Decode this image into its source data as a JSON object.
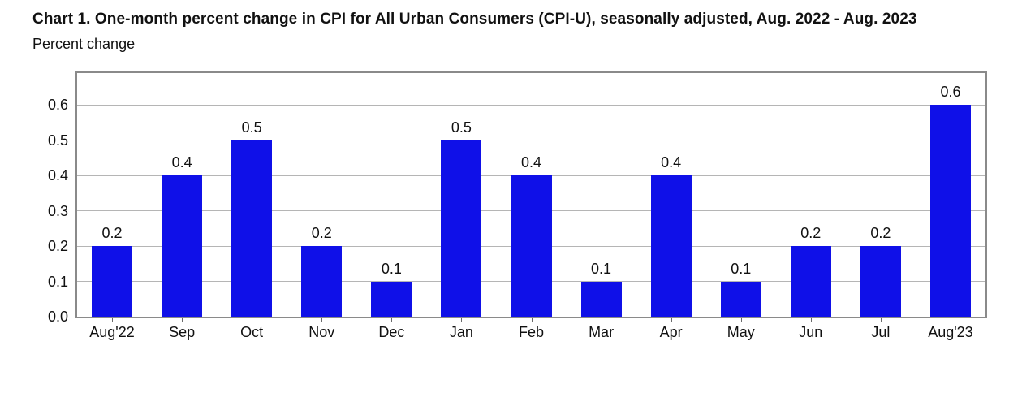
{
  "page": {
    "background": "#ffffff"
  },
  "header": {
    "title": "Chart 1. One-month percent change in CPI for All Urban Consumers (CPI-U), seasonally adjusted, Aug. 2022 - Aug. 2023",
    "subtitle": "Percent change"
  },
  "chart_data": {
    "type": "bar",
    "title": "Chart 1. One-month percent change in CPI for All Urban Consumers (CPI-U), seasonally adjusted, Aug. 2022 - Aug. 2023",
    "subtitle": "Percent change",
    "xlabel": "",
    "ylabel": "Percent change",
    "categories": [
      "Aug'22",
      "Sep",
      "Oct",
      "Nov",
      "Dec",
      "Jan",
      "Feb",
      "Mar",
      "Apr",
      "May",
      "Jun",
      "Jul",
      "Aug'23"
    ],
    "values": [
      0.2,
      0.4,
      0.5,
      0.2,
      0.1,
      0.5,
      0.4,
      0.1,
      0.4,
      0.1,
      0.2,
      0.2,
      0.6
    ],
    "value_labels": [
      "0.2",
      "0.4",
      "0.5",
      "0.2",
      "0.1",
      "0.5",
      "0.4",
      "0.1",
      "0.4",
      "0.1",
      "0.2",
      "0.2",
      "0.6"
    ],
    "yticks": [
      0.0,
      0.1,
      0.2,
      0.3,
      0.4,
      0.5,
      0.6
    ],
    "ytick_labels": [
      "0.0",
      "0.1",
      "0.2",
      "0.3",
      "0.4",
      "0.5",
      "0.6"
    ],
    "ylim": [
      0,
      0.69
    ],
    "grid": true,
    "legend_position": "none",
    "colors": {
      "bar": "#0f10e8",
      "gridline": "#b5b5b5",
      "plot_border": "#8a8a8a",
      "text": "#111111"
    }
  }
}
